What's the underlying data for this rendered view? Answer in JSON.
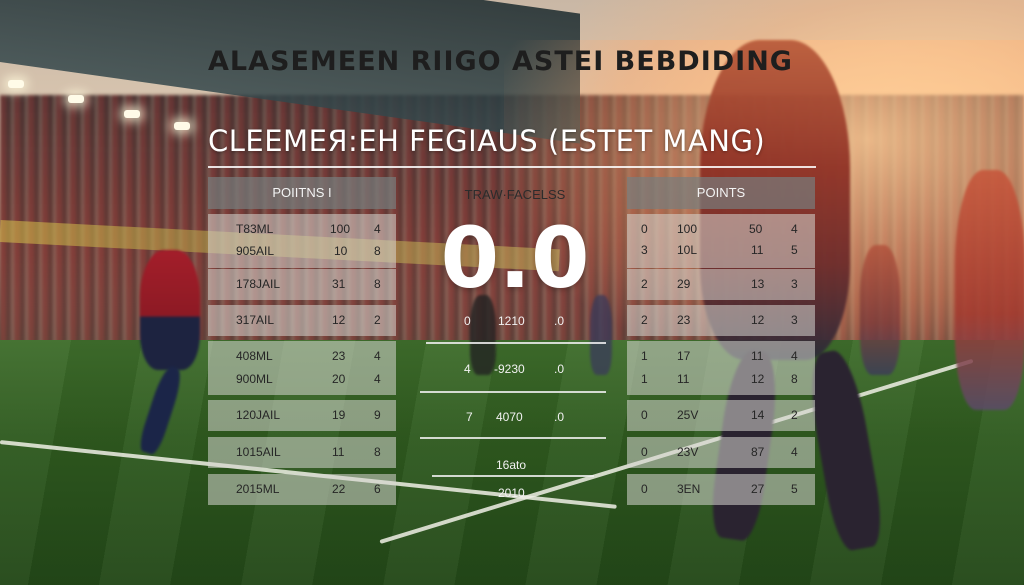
{
  "headline": "ALASEMEEN RIIGO ASTEI BEBDIDING",
  "subheading": "CLEEMEЯ:EH FEGIAUS (ESTET MANG)",
  "left_table": {
    "header": "POIITNS I",
    "rows": [
      {
        "lines": [
          [
            "T83ML",
            "100",
            "4"
          ],
          [
            "905AIL",
            "10",
            "8"
          ]
        ]
      },
      {
        "lines": [
          [
            "178JAIL",
            "31",
            "8"
          ]
        ]
      },
      {
        "lines": [
          [
            "317AIL",
            "12",
            "2"
          ]
        ]
      },
      {
        "lines": [
          [
            "408ML",
            "23",
            "4"
          ],
          [
            "900ML",
            "20",
            "4"
          ]
        ]
      },
      {
        "lines": [
          [
            "120JAIL",
            "19",
            "9"
          ]
        ]
      },
      {
        "lines": [
          [
            "1015AIL",
            "11",
            "8"
          ]
        ]
      },
      {
        "lines": [
          [
            "2015ML",
            "22",
            "6"
          ]
        ]
      }
    ]
  },
  "center": {
    "label": "TRAW·FACELSS",
    "score": "0.0",
    "matches": [
      {
        "a": "0",
        "b": "1210",
        "c": ".0"
      },
      {
        "a": "4",
        "b": "-9230",
        "c": ".0"
      },
      {
        "a": "7",
        "b": "4070",
        "c": ".0"
      }
    ],
    "footer_top": "16ato",
    "footer_bottom": "2010"
  },
  "right_table": {
    "header": "POINTS",
    "rows": [
      {
        "lines": [
          [
            "0",
            "100",
            "50",
            "4"
          ],
          [
            "3",
            "10L",
            "11",
            "5"
          ]
        ]
      },
      {
        "lines": [
          [
            "2",
            "29",
            "13",
            "3"
          ]
        ]
      },
      {
        "lines": [
          [
            "2",
            "23",
            "12",
            "3"
          ]
        ]
      },
      {
        "lines": [
          [
            "1",
            "17",
            "11",
            "4"
          ],
          [
            "1",
            "11",
            "12",
            "8"
          ]
        ]
      },
      {
        "lines": [
          [
            "0",
            "25V",
            "14",
            "2"
          ]
        ]
      },
      {
        "lines": [
          [
            "0",
            "23V",
            "87",
            "4"
          ]
        ]
      },
      {
        "lines": [
          [
            "0",
            "3EN",
            "27",
            "5"
          ]
        ]
      }
    ]
  }
}
